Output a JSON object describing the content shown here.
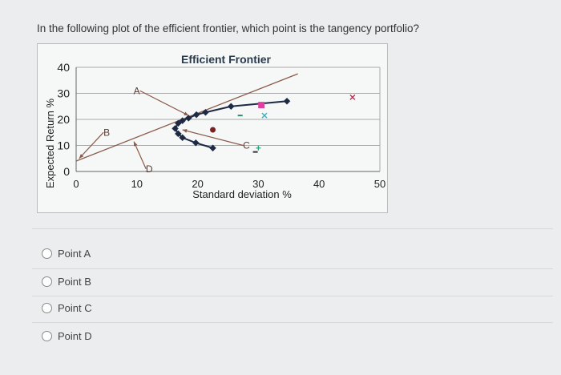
{
  "question": "In the following plot of the efficient frontier, which point is the tangency portfolio?",
  "chart_data": {
    "type": "scatter",
    "title": "Efficient Frontier",
    "xlabel": "Standard deviation %",
    "ylabel": "Expected Return %",
    "xlim": [
      0,
      50
    ],
    "ylim": [
      0,
      40
    ],
    "xticks": [
      "0",
      "10",
      "20",
      "30",
      "40",
      "50"
    ],
    "yticks": [
      "0",
      "10",
      "20",
      "30",
      "40"
    ],
    "grid": true,
    "frontier": {
      "x": [
        22.5,
        19.7,
        17.5,
        16.8,
        16.3,
        16.8,
        17.5,
        18.5,
        19.8,
        21.3,
        25.5,
        34.7
      ],
      "y": [
        9,
        11,
        13,
        14.5,
        16.5,
        18.5,
        19.5,
        20.5,
        21.8,
        22.7,
        25,
        27
      ],
      "color": "#1e2a44"
    },
    "capital_market_line": {
      "x": [
        0,
        36.5
      ],
      "y": [
        4,
        37.5
      ],
      "color": "#8a5a4a"
    },
    "assets": [
      {
        "x": 30.5,
        "y": 25.5,
        "marker": "square",
        "color": "#e040a0"
      },
      {
        "x": 27,
        "y": 21.5,
        "marker": "dash",
        "color": "#2a8a6a"
      },
      {
        "x": 31,
        "y": 21.5,
        "marker": "x",
        "color": "#30b0c0"
      },
      {
        "x": 22.5,
        "y": 16,
        "marker": "circle",
        "color": "#7a2020"
      },
      {
        "x": 30,
        "y": 9,
        "marker": "plus",
        "color": "#30a080"
      },
      {
        "x": 29.5,
        "y": 7.5,
        "marker": "dash",
        "color": "#333333"
      },
      {
        "x": 45.5,
        "y": 28.5,
        "marker": "x",
        "color": "#b03050"
      }
    ],
    "annotations": [
      {
        "text": "A",
        "label_x": 10.5,
        "label_y": 31,
        "point_x": 18.5,
        "point_y": 21.5
      },
      {
        "text": "B",
        "label_x": 4.5,
        "label_y": 15,
        "point_x": 0.5,
        "point_y": 5
      },
      {
        "text": "C",
        "label_x": 27.5,
        "label_y": 10,
        "point_x": 17.5,
        "point_y": 16
      },
      {
        "text": "D",
        "label_x": 11.5,
        "label_y": 1,
        "point_x": 9.5,
        "point_y": 11.5
      }
    ]
  },
  "options": [
    "Point A",
    "Point B",
    "Point C",
    "Point D"
  ]
}
